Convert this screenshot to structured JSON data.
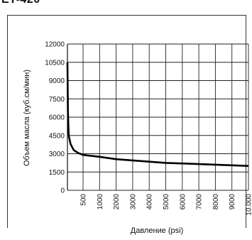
{
  "header": {
    "label": "ET-420"
  },
  "chart_data": {
    "type": "line",
    "title": "",
    "xlabel": "Давление (psi)",
    "ylabel": "Объем масла (куб.см/мин)",
    "x_tick_labels": [
      "500",
      "1000",
      "2000",
      "3000",
      "4000",
      "5000",
      "6000",
      "7000",
      "8000",
      "9000",
      "10.000"
    ],
    "y_tick_labels": [
      "0",
      "1500",
      "3000",
      "4500",
      "6000",
      "7500",
      "9000",
      "10500",
      "12000"
    ],
    "ylim": [
      0,
      12000
    ],
    "grid": true,
    "series": [
      {
        "x": [
          0,
          15,
          40,
          100,
          200,
          350,
          500,
          1000,
          2000,
          3000,
          4000,
          5000,
          6000,
          7000,
          8000,
          9000,
          10000
        ],
        "y": [
          10500,
          6500,
          4500,
          3800,
          3300,
          3050,
          2900,
          2750,
          2550,
          2450,
          2350,
          2250,
          2200,
          2150,
          2100,
          2050,
          2000
        ]
      }
    ]
  }
}
